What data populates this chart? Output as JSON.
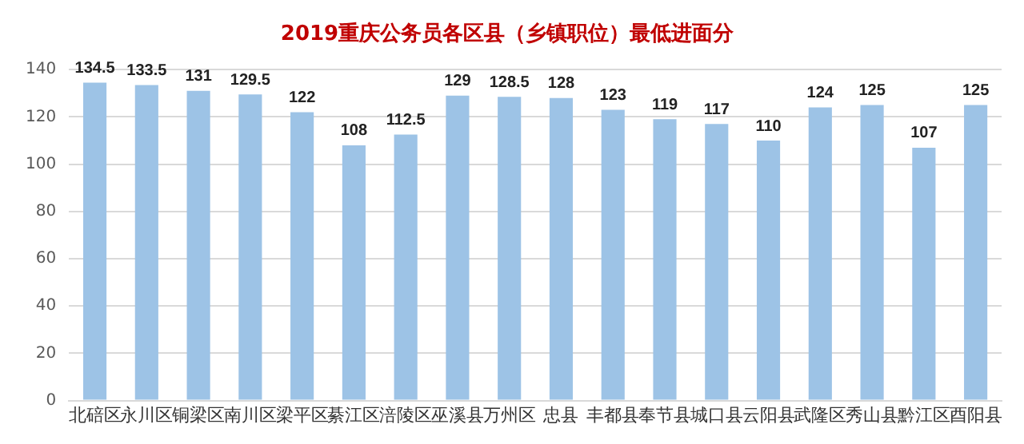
{
  "chart_data": {
    "type": "bar",
    "title": "2019重庆公务员各区县（乡镇职位）最低进面分",
    "categories": [
      "北碚区",
      "永川区",
      "铜梁区",
      "南川区",
      "梁平区",
      "綦江区",
      "涪陵区",
      "巫溪县",
      "万州区",
      "忠县",
      "丰都县",
      "奉节县",
      "城口县",
      "云阳县",
      "武隆区",
      "秀山县",
      "黔江区",
      "酉阳县"
    ],
    "values": [
      134.5,
      133.5,
      131,
      129.5,
      122,
      108,
      112.5,
      129,
      128.5,
      128,
      123,
      119,
      117,
      110,
      124,
      125,
      107,
      125
    ],
    "color": "#9dc3e6",
    "ylim": [
      0,
      140
    ],
    "yticks": [
      0,
      20,
      40,
      60,
      80,
      100,
      120,
      140
    ],
    "grid": "y",
    "data_labels": true,
    "legend": false
  }
}
